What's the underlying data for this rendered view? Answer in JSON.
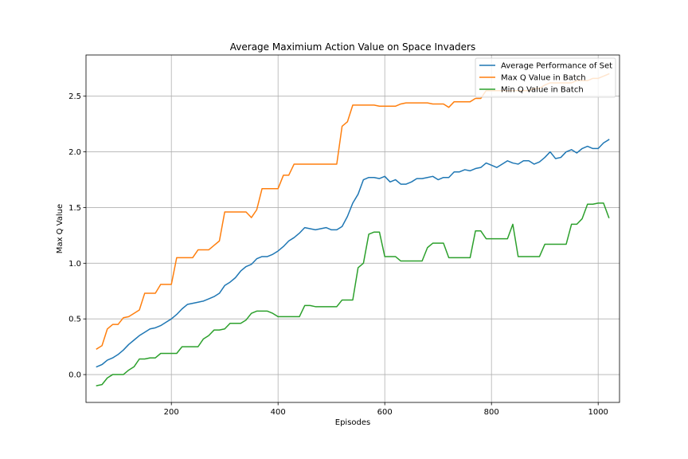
{
  "chart_data": {
    "type": "line",
    "title": "Average Maximium Action Value on Space Invaders",
    "xlabel": "Episodes",
    "ylabel": "Max Q Value",
    "xlim": [
      40,
      1040
    ],
    "ylim": [
      -0.25,
      2.87
    ],
    "xticks": [
      200,
      400,
      600,
      800,
      1000
    ],
    "yticks": [
      0.0,
      0.5,
      1.0,
      1.5,
      2.0,
      2.5
    ],
    "xtick_labels": [
      "200",
      "400",
      "600",
      "800",
      "1000"
    ],
    "ytick_labels": [
      "0.0",
      "0.5",
      "1.0",
      "1.5",
      "2.0",
      "2.5"
    ],
    "grid": true,
    "legend_position": "top-right",
    "series": [
      {
        "name": "Average Performance of Set",
        "color": "#1f77b4",
        "x": [
          60,
          70,
          80,
          90,
          100,
          110,
          120,
          130,
          140,
          150,
          160,
          170,
          180,
          190,
          200,
          210,
          220,
          230,
          240,
          250,
          260,
          270,
          280,
          290,
          300,
          310,
          320,
          330,
          340,
          350,
          360,
          370,
          380,
          390,
          400,
          410,
          420,
          430,
          440,
          450,
          460,
          470,
          480,
          490,
          500,
          510,
          520,
          530,
          540,
          550,
          560,
          570,
          580,
          590,
          600,
          610,
          620,
          630,
          640,
          650,
          660,
          670,
          680,
          690,
          700,
          710,
          720,
          730,
          740,
          750,
          760,
          770,
          780,
          790,
          800,
          810,
          820,
          830,
          840,
          850,
          860,
          870,
          880,
          890,
          900,
          910,
          920,
          930,
          940,
          950,
          960,
          970,
          980,
          990,
          1000,
          1010,
          1020
        ],
        "y": [
          0.07,
          0.09,
          0.13,
          0.15,
          0.18,
          0.22,
          0.27,
          0.31,
          0.35,
          0.38,
          0.41,
          0.42,
          0.44,
          0.47,
          0.5,
          0.54,
          0.59,
          0.63,
          0.64,
          0.65,
          0.66,
          0.68,
          0.7,
          0.73,
          0.8,
          0.83,
          0.87,
          0.93,
          0.97,
          0.99,
          1.04,
          1.06,
          1.06,
          1.08,
          1.11,
          1.15,
          1.2,
          1.23,
          1.27,
          1.32,
          1.31,
          1.3,
          1.31,
          1.32,
          1.3,
          1.3,
          1.33,
          1.42,
          1.54,
          1.62,
          1.75,
          1.77,
          1.77,
          1.76,
          1.78,
          1.73,
          1.75,
          1.71,
          1.71,
          1.73,
          1.76,
          1.76,
          1.77,
          1.78,
          1.75,
          1.77,
          1.77,
          1.82,
          1.82,
          1.84,
          1.83,
          1.85,
          1.86,
          1.9,
          1.88,
          1.86,
          1.89,
          1.92,
          1.9,
          1.89,
          1.92,
          1.92,
          1.89,
          1.91,
          1.95,
          2.0,
          1.94,
          1.95,
          2.0,
          2.02,
          1.99,
          2.03,
          2.05,
          2.03,
          2.03,
          2.08,
          2.11
        ]
      },
      {
        "name": "Max Q Value in Batch",
        "color": "#ff7f0e",
        "x": [
          60,
          70,
          80,
          90,
          100,
          110,
          120,
          130,
          140,
          150,
          160,
          170,
          180,
          190,
          200,
          210,
          220,
          230,
          240,
          250,
          260,
          270,
          280,
          290,
          300,
          310,
          320,
          330,
          340,
          350,
          360,
          370,
          380,
          390,
          400,
          410,
          420,
          430,
          440,
          450,
          460,
          470,
          480,
          490,
          500,
          510,
          520,
          530,
          540,
          550,
          560,
          570,
          580,
          590,
          600,
          610,
          620,
          630,
          640,
          650,
          660,
          670,
          680,
          690,
          700,
          710,
          720,
          730,
          740,
          750,
          760,
          770,
          780,
          790,
          800,
          810,
          820,
          830,
          840,
          850,
          860,
          870,
          880,
          890,
          900,
          910,
          920,
          930,
          940,
          950,
          960,
          970,
          980,
          990,
          1000,
          1010,
          1020
        ],
        "y": [
          0.23,
          0.26,
          0.41,
          0.45,
          0.45,
          0.51,
          0.52,
          0.55,
          0.58,
          0.73,
          0.73,
          0.73,
          0.81,
          0.81,
          0.81,
          1.05,
          1.05,
          1.05,
          1.05,
          1.12,
          1.12,
          1.12,
          1.16,
          1.2,
          1.46,
          1.46,
          1.46,
          1.46,
          1.46,
          1.41,
          1.48,
          1.67,
          1.67,
          1.67,
          1.67,
          1.79,
          1.79,
          1.89,
          1.89,
          1.89,
          1.89,
          1.89,
          1.89,
          1.89,
          1.89,
          1.89,
          2.23,
          2.27,
          2.42,
          2.42,
          2.42,
          2.42,
          2.42,
          2.41,
          2.41,
          2.41,
          2.41,
          2.43,
          2.44,
          2.44,
          2.44,
          2.44,
          2.44,
          2.43,
          2.43,
          2.43,
          2.4,
          2.45,
          2.45,
          2.45,
          2.45,
          2.48,
          2.48,
          2.55,
          2.55,
          2.55,
          2.55,
          2.55,
          2.55,
          2.55,
          2.55,
          2.55,
          2.57,
          2.57,
          2.6,
          2.62,
          2.62,
          2.62,
          2.62,
          2.62,
          2.64,
          2.64,
          2.64,
          2.66,
          2.66,
          2.68,
          2.7
        ]
      },
      {
        "name": "Min Q Value in Batch",
        "color": "#2ca02c",
        "x": [
          60,
          70,
          80,
          90,
          100,
          110,
          120,
          130,
          140,
          150,
          160,
          170,
          180,
          190,
          200,
          210,
          220,
          230,
          240,
          250,
          260,
          270,
          280,
          290,
          300,
          310,
          320,
          330,
          340,
          350,
          360,
          370,
          380,
          390,
          400,
          410,
          420,
          430,
          440,
          450,
          460,
          470,
          480,
          490,
          500,
          510,
          520,
          530,
          540,
          550,
          560,
          570,
          580,
          590,
          600,
          610,
          620,
          630,
          640,
          650,
          660,
          670,
          680,
          690,
          700,
          710,
          720,
          730,
          740,
          750,
          760,
          770,
          780,
          790,
          800,
          810,
          820,
          830,
          840,
          850,
          860,
          870,
          880,
          890,
          900,
          910,
          920,
          930,
          940,
          950,
          960,
          970,
          980,
          990,
          1000,
          1010,
          1020
        ],
        "y": [
          -0.1,
          -0.09,
          -0.03,
          0.0,
          0.0,
          0.0,
          0.04,
          0.07,
          0.14,
          0.14,
          0.15,
          0.15,
          0.19,
          0.19,
          0.19,
          0.19,
          0.25,
          0.25,
          0.25,
          0.25,
          0.32,
          0.35,
          0.4,
          0.4,
          0.41,
          0.46,
          0.46,
          0.46,
          0.49,
          0.55,
          0.57,
          0.57,
          0.57,
          0.55,
          0.52,
          0.52,
          0.52,
          0.52,
          0.52,
          0.62,
          0.62,
          0.61,
          0.61,
          0.61,
          0.61,
          0.61,
          0.67,
          0.67,
          0.67,
          0.96,
          1.0,
          1.26,
          1.28,
          1.28,
          1.06,
          1.06,
          1.06,
          1.02,
          1.02,
          1.02,
          1.02,
          1.02,
          1.14,
          1.18,
          1.18,
          1.18,
          1.05,
          1.05,
          1.05,
          1.05,
          1.05,
          1.29,
          1.29,
          1.22,
          1.22,
          1.22,
          1.22,
          1.22,
          1.35,
          1.06,
          1.06,
          1.06,
          1.06,
          1.06,
          1.17,
          1.17,
          1.17,
          1.17,
          1.17,
          1.35,
          1.35,
          1.4,
          1.53,
          1.53,
          1.54,
          1.54,
          1.41
        ]
      }
    ]
  }
}
